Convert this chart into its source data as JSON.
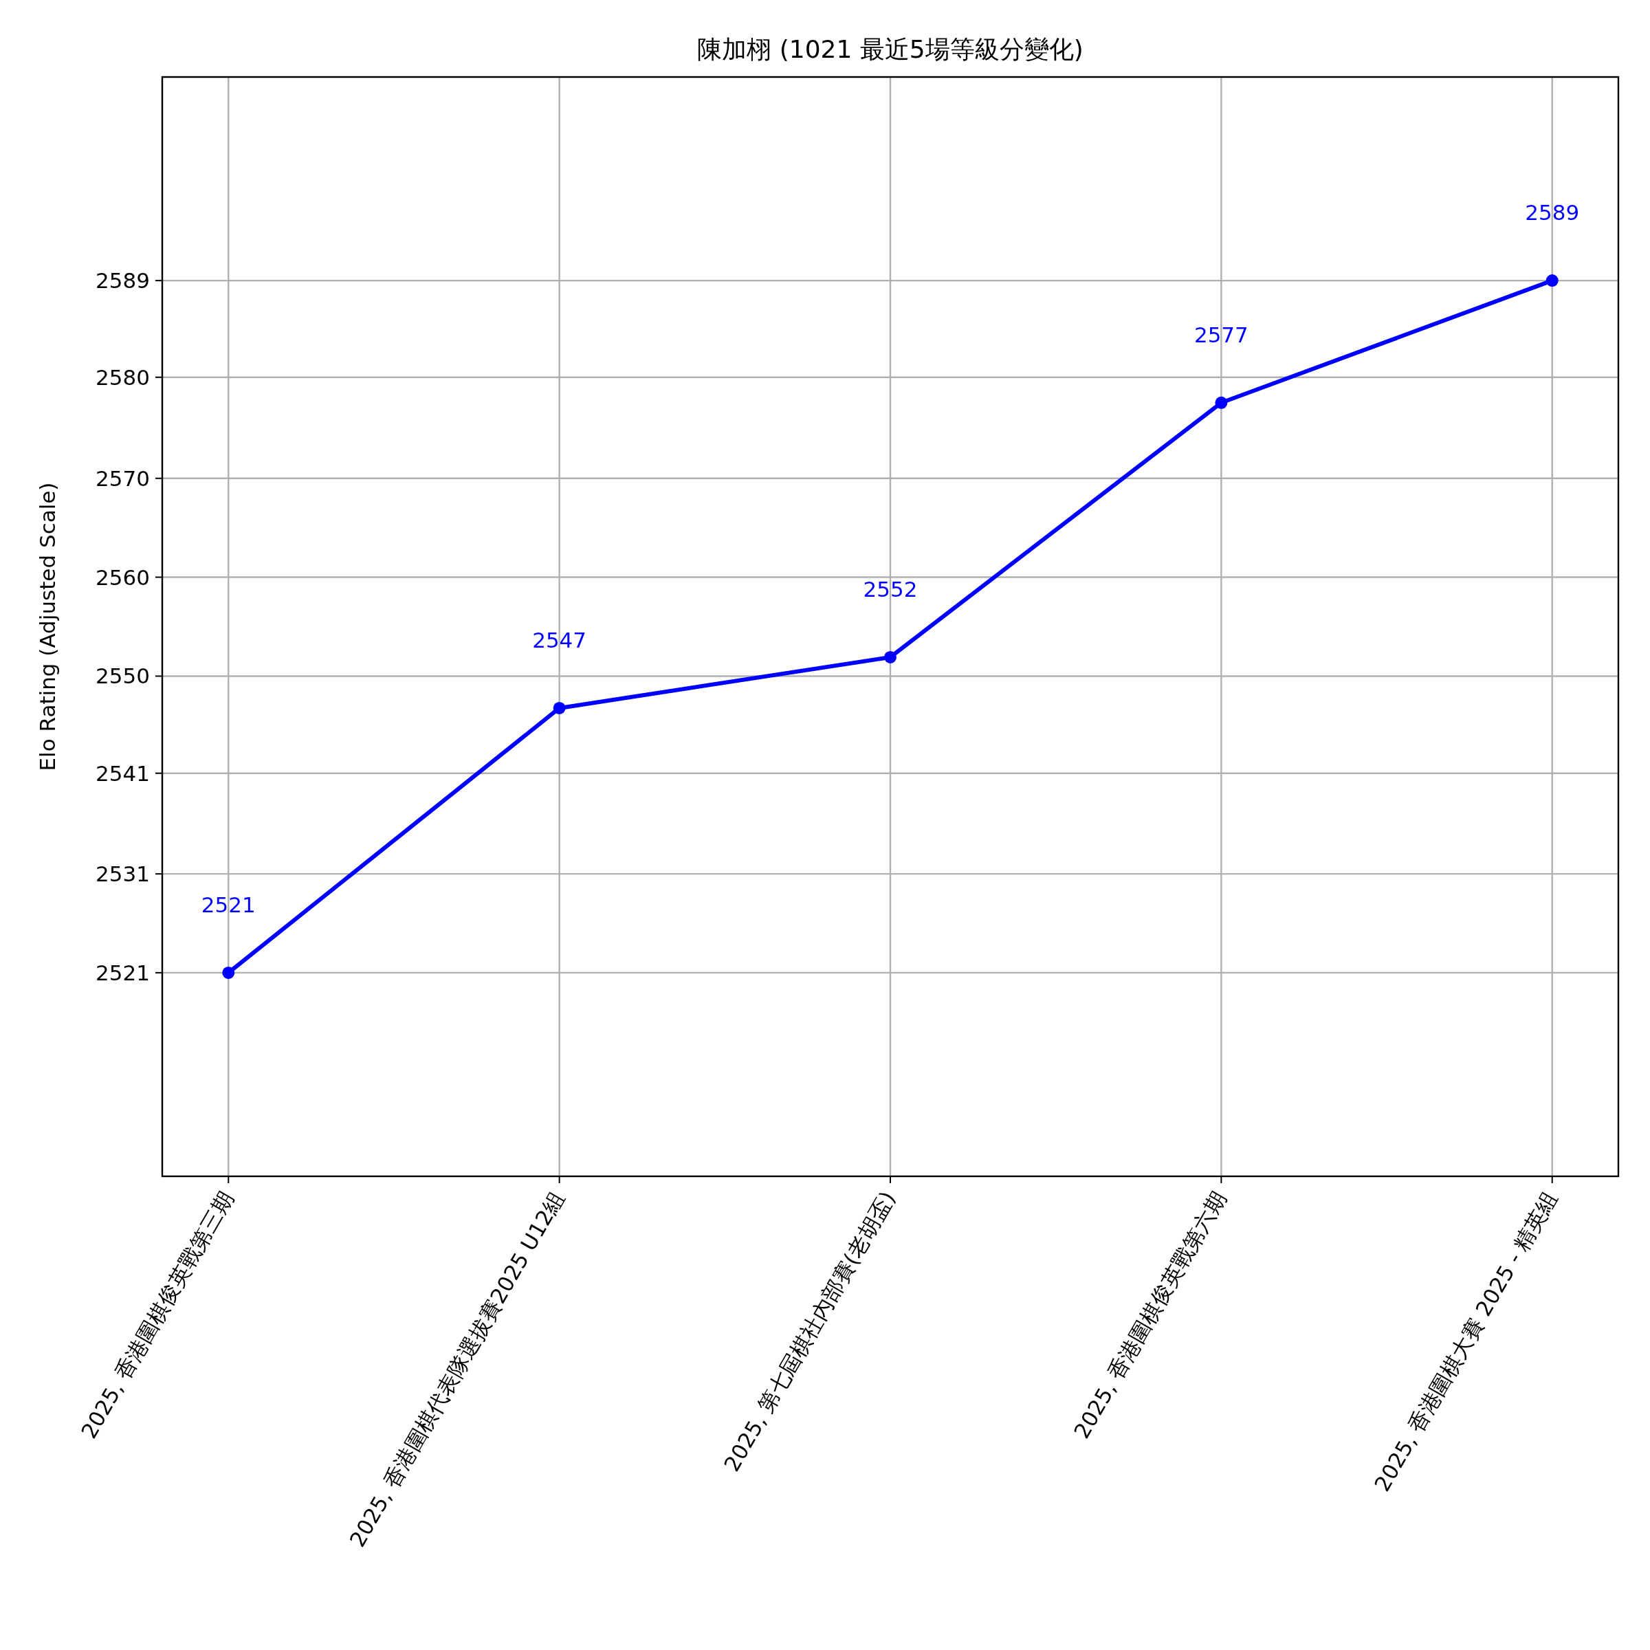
{
  "chart_data": {
    "type": "line",
    "title": "陳加栩 (1021 最近5場等級分變化)",
    "ylabel": "Elo Rating (Adjusted Scale)",
    "categories": [
      "2025, 香港圍棋俊英戰第三期",
      "2025, 香港圍棋代表隊選拔賽2025 U12組",
      "2025, 第七屆棋社內部賽(老胡盃)",
      "2025, 香港圍棋俊英戰第六期",
      "2025, 香港圍棋大賽 2025 - 精英組"
    ],
    "series": [
      {
        "color": "#0000ff",
        "values": [
          2521,
          2547,
          2552,
          2577,
          2589
        ]
      }
    ],
    "ylim": [
      2501,
      2609
    ],
    "yticks": [
      2521,
      {
        "value": 2530.71,
        "label": "2531"
      },
      {
        "value": 2540.6,
        "label": "2541"
      },
      {
        "value": 2550.14,
        "label": "2550"
      },
      {
        "value": 2559.86,
        "label": "2560"
      },
      {
        "value": 2569.57,
        "label": "2570"
      },
      {
        "value": 2579.5,
        "label": "2580"
      },
      2589
    ],
    "grid": true,
    "marker": "circle",
    "line_style": "solid",
    "data_labels": true
  }
}
